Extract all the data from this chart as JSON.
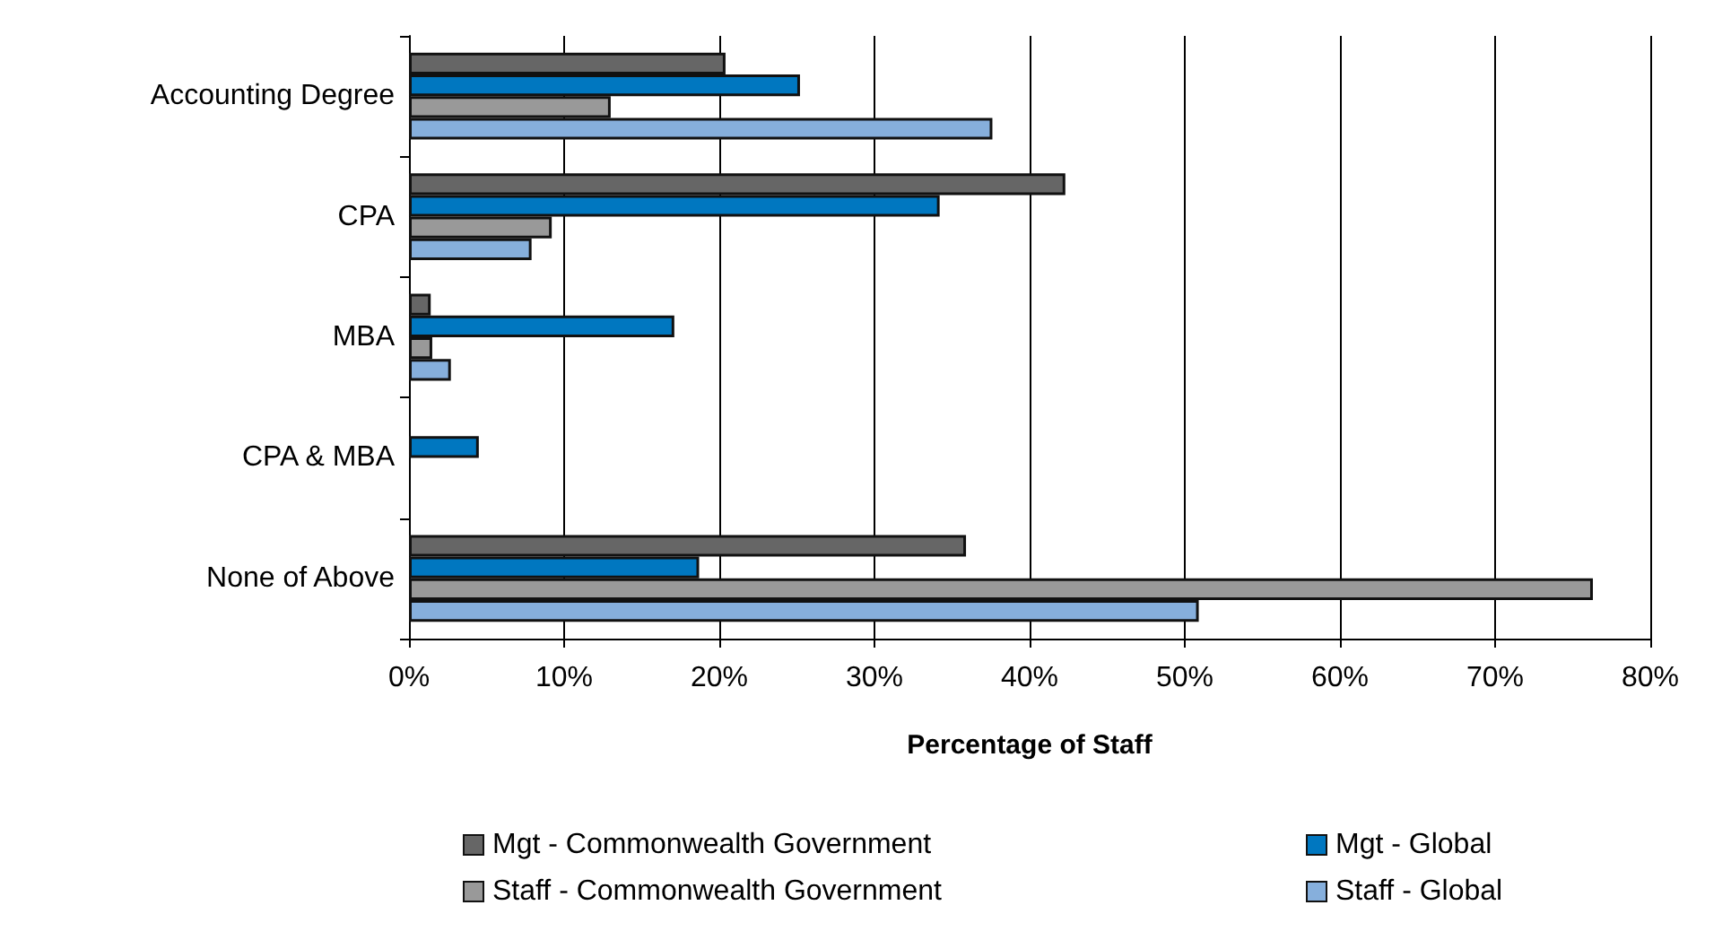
{
  "chart_data": {
    "type": "bar",
    "orientation": "horizontal",
    "xlabel": "Percentage of Staff",
    "categories": [
      "Accounting Degree",
      "CPA",
      "MBA",
      "CPA & MBA",
      "None of Above"
    ],
    "series": [
      {
        "name": "Mgt - Commonwealth Government",
        "color": "#666666",
        "values": [
          20.4,
          42.3,
          1.4,
          null,
          35.9
        ]
      },
      {
        "name": "Mgt - Global",
        "color": "#0077c0",
        "values": [
          25.2,
          34.2,
          17.1,
          4.5,
          18.7
        ]
      },
      {
        "name": "Staff - Commonwealth Government",
        "color": "#999999",
        "values": [
          13.0,
          9.2,
          1.5,
          null,
          76.3
        ]
      },
      {
        "name": "Staff - Global",
        "color": "#86afdc",
        "values": [
          37.6,
          7.9,
          2.7,
          null,
          50.9
        ]
      }
    ],
    "xlim": [
      0,
      80
    ],
    "xticks": [
      {
        "value": 0,
        "label": "0%"
      },
      {
        "value": 10,
        "label": "10%"
      },
      {
        "value": 20,
        "label": "20%"
      },
      {
        "value": 30,
        "label": "30%"
      },
      {
        "value": 40,
        "label": "40%"
      },
      {
        "value": 50,
        "label": "50%"
      },
      {
        "value": 60,
        "label": "60%"
      },
      {
        "value": 70,
        "label": "70%"
      },
      {
        "value": 80,
        "label": "80%"
      }
    ],
    "grid": "x",
    "legend": "bottom"
  }
}
